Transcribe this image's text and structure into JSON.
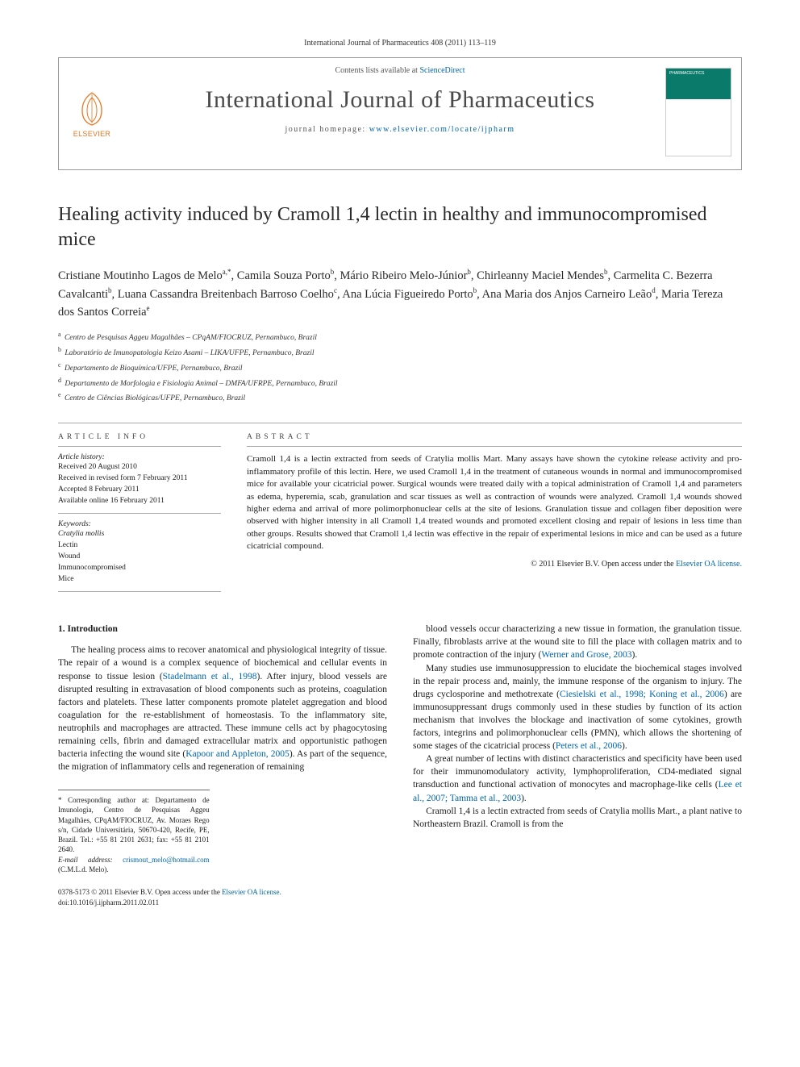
{
  "header": {
    "citation": "International Journal of Pharmaceutics 408 (2011) 113–119",
    "contents_prefix": "Contents lists available at ",
    "contents_link": "ScienceDirect",
    "journal": "International Journal of Pharmaceutics",
    "homepage_prefix": "journal homepage: ",
    "homepage_link": "www.elsevier.com/locate/ijpharm",
    "publisher": "ELSEVIER",
    "cover_label": "PHARMACEUTICS"
  },
  "title": "Healing activity induced by Cramoll 1,4 lectin in healthy and immunocompromised mice",
  "authors_html": "Cristiane Moutinho Lagos de Melo<sup>a,*</sup>, Camila Souza Porto<sup>b</sup>, Mário Ribeiro Melo-Júnior<sup>b</sup>, Chirleanny Maciel Mendes<sup>b</sup>, Carmelita C. Bezerra Cavalcanti<sup>b</sup>, Luana Cassandra Breitenbach Barroso Coelho<sup>c</sup>, Ana Lúcia Figueiredo Porto<sup>b</sup>, Ana Maria dos Anjos Carneiro Leão<sup>d</sup>, Maria Tereza dos Santos Correia<sup>e</sup>",
  "affiliations": [
    {
      "sup": "a",
      "text": "Centro de Pesquisas Aggeu Magalhães – CPqAM/FIOCRUZ, Pernambuco, Brazil"
    },
    {
      "sup": "b",
      "text": "Laboratório de Imunopatologia Keizo Asami – LIKA/UFPE, Pernambuco, Brazil"
    },
    {
      "sup": "c",
      "text": "Departamento de Bioquímica/UFPE, Pernambuco, Brazil"
    },
    {
      "sup": "d",
      "text": "Departamento de Morfologia e Fisiologia Animal – DMFA/UFRPE, Pernambuco, Brazil"
    },
    {
      "sup": "e",
      "text": "Centro de Ciências Biológicas/UFPE, Pernambuco, Brazil"
    }
  ],
  "info": {
    "head": "ARTICLE INFO",
    "history_head": "Article history:",
    "history": [
      "Received 20 August 2010",
      "Received in revised form 7 February 2011",
      "Accepted 8 February 2011",
      "Available online 16 February 2011"
    ],
    "keywords_head": "Keywords:",
    "keywords": [
      "Cratylia mollis",
      "Lectin",
      "Wound",
      "Immunocompromised",
      "Mice"
    ]
  },
  "abstract": {
    "head": "ABSTRACT",
    "body": "Cramoll 1,4 is a lectin extracted from seeds of Cratylia mollis Mart. Many assays have shown the cytokine release activity and pro-inflammatory profile of this lectin. Here, we used Cramoll 1,4 in the treatment of cutaneous wounds in normal and immunocompromised mice for available your cicatricial power. Surgical wounds were treated daily with a topical administration of Cramoll 1,4 and parameters as edema, hyperemia, scab, granulation and scar tissues as well as contraction of wounds were analyzed. Cramoll 1,4 wounds showed higher edema and arrival of more polimorphonuclear cells at the site of lesions. Granulation tissue and collagen fiber deposition were observed with higher intensity in all Cramoll 1,4 treated wounds and promoted excellent closing and repair of lesions in less time than other groups. Results showed that Cramoll 1,4 lectin was effective in the repair of experimental lesions in mice and can be used as a future cicatricial compound.",
    "copyright_prefix": "© 2011 Elsevier B.V. ",
    "copyright_open": "Open access under the ",
    "copyright_link": "Elsevier OA license."
  },
  "section1": {
    "head": "1. Introduction",
    "p1": "The healing process aims to recover anatomical and physiological integrity of tissue. The repair of a wound is a complex sequence of biochemical and cellular events in response to tissue lesion (Stadelmann et al., 1998). After injury, blood vessels are disrupted resulting in extravasation of blood components such as proteins, coagulation factors and platelets. These latter components promote platelet aggregation and blood coagulation for the re-establishment of homeostasis. To the inflammatory site, neutrophils and macrophages are attracted. These immune cells act by phagocytosing remaining cells, fibrin and damaged extracellular matrix and opportunistic pathogen bacteria infecting the wound site (Kapoor and Appleton, 2005). As part of the sequence, the migration of inflammatory cells and regeneration of remaining",
    "p2": "blood vessels occur characterizing a new tissue in formation, the granulation tissue. Finally, fibroblasts arrive at the wound site to fill the place with collagen matrix and to promote contraction of the injury (Werner and Grose, 2003).",
    "p3": "Many studies use immunosuppression to elucidate the biochemical stages involved in the repair process and, mainly, the immune response of the organism to injury. The drugs cyclosporine and methotrexate (Ciesielski et al., 1998; Koning et al., 2006) are immunosuppressant drugs commonly used in these studies by function of its action mechanism that involves the blockage and inactivation of some cytokines, growth factors, integrins and polimorphonuclear cells (PMN), which allows the shortening of some stages of the cicatricial process (Peters et al., 2006).",
    "p4": "A great number of lectins with distinct characteristics and specificity have been used for their immunomodulatory activity, lymphoproliferation, CD4-mediated signal transduction and functional activation of monocytes and macrophage-like cells (Lee et al., 2007; Tamma et al., 2003).",
    "p5": "Cramoll 1,4 is a lectin extracted from seeds of Cratylia mollis Mart., a plant native to Northeastern Brazil. Cramoll is from the"
  },
  "footnotes": {
    "corr": "* Corresponding author at: Departamento de Imunologia, Centro de Pesquisas Aggeu Magalhães, CPqAM/FIOCRUZ, Av. Moraes Rego s/n, Cidade Universitária, 50670-420, Recife, PE, Brazil. Tel.: +55 81 2101 2631; fax: +55 81 2101 2640.",
    "email_label": "E-mail address: ",
    "email": "crismout_melo@hotmail.com",
    "email_suffix": " (C.M.L.d. Melo)."
  },
  "footer": {
    "line1_prefix": "0378-5173 © 2011 Elsevier B.V. ",
    "line1_open": "Open access under the ",
    "line1_link": "Elsevier OA license.",
    "doi": "doi:10.1016/j.ijpharm.2011.02.011"
  },
  "colors": {
    "link": "#0066aa",
    "elsevier_orange": "#e87722",
    "cover_green": "#0a7a6a"
  }
}
